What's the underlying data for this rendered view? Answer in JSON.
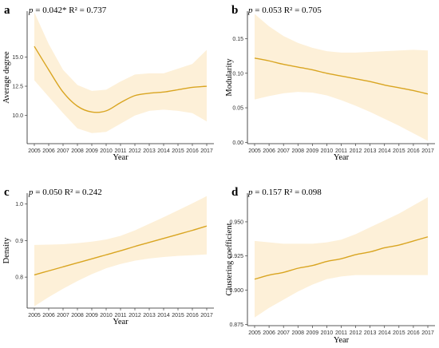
{
  "colors": {
    "band": "#fdf0d8",
    "line": "#d9a521",
    "axis": "#222222"
  },
  "chart_data": [
    {
      "type": "line",
      "panel_label": "a",
      "stat_p_symbol": "p",
      "stat_text": " = 0.042* R² = 0.737",
      "xlabel": "Year",
      "ylabel": "Average degree",
      "x": [
        2005,
        2006,
        2007,
        2008,
        2009,
        2010,
        2011,
        2012,
        2013,
        2014,
        2015,
        2016,
        2017
      ],
      "x_tick_labels": [
        "2005",
        "2006",
        "2007",
        "2008",
        "2009",
        "2010",
        "2011",
        "2012",
        "2013",
        "2014",
        "2015",
        "2016",
        "2017"
      ],
      "y_ticks": [
        10.0,
        12.5,
        15.0
      ],
      "y_tick_labels": [
        "10.0",
        "12.5",
        "15.0"
      ],
      "ylim": [
        7.6,
        18.9
      ],
      "fit": [
        15.9,
        13.9,
        12.0,
        10.8,
        10.3,
        10.4,
        11.1,
        11.7,
        11.9,
        12.0,
        12.2,
        12.4,
        12.5
      ],
      "ci_lower": [
        13.0,
        11.6,
        10.2,
        8.9,
        8.5,
        8.6,
        9.3,
        10.0,
        10.4,
        10.5,
        10.4,
        10.2,
        9.5
      ],
      "ci_upper": [
        18.8,
        16.1,
        13.9,
        12.6,
        12.1,
        12.2,
        12.9,
        13.5,
        13.6,
        13.6,
        14.0,
        14.4,
        15.6
      ],
      "grid": false,
      "legend": "none"
    },
    {
      "type": "line",
      "panel_label": "b",
      "stat_p_symbol": "p",
      "stat_text": " = 0.053 R² = 0.705",
      "xlabel": "Year",
      "ylabel": "Modularity",
      "x": [
        2005,
        2006,
        2007,
        2008,
        2009,
        2010,
        2011,
        2012,
        2013,
        2014,
        2015,
        2016,
        2017
      ],
      "x_tick_labels": [
        "2005",
        "2006",
        "2007",
        "2008",
        "2009",
        "2010",
        "2011",
        "2012",
        "2013",
        "2014",
        "2015",
        "2016",
        "2017"
      ],
      "y_ticks": [
        0.0,
        0.05,
        0.1,
        0.15
      ],
      "y_tick_labels": [
        "0.00",
        "0.05",
        "0.10",
        "0.15"
      ],
      "ylim": [
        -0.002,
        0.19
      ],
      "fit": [
        0.122,
        0.118,
        0.113,
        0.109,
        0.105,
        0.1,
        0.096,
        0.092,
        0.088,
        0.083,
        0.079,
        0.075,
        0.07
      ],
      "ci_lower": [
        0.062,
        0.067,
        0.071,
        0.073,
        0.072,
        0.068,
        0.061,
        0.053,
        0.044,
        0.034,
        0.024,
        0.013,
        0.002
      ],
      "ci_upper": [
        0.186,
        0.168,
        0.154,
        0.144,
        0.137,
        0.132,
        0.13,
        0.13,
        0.131,
        0.132,
        0.133,
        0.134,
        0.133
      ],
      "grid": false,
      "legend": "none"
    },
    {
      "type": "line",
      "panel_label": "c",
      "stat_p_symbol": "p",
      "stat_text": " = 0.050 R² = 0.242",
      "xlabel": "Year",
      "ylabel": "Density",
      "x": [
        2005,
        2006,
        2007,
        2008,
        2009,
        2010,
        2011,
        2012,
        2013,
        2014,
        2015,
        2016,
        2017
      ],
      "x_tick_labels": [
        "2005",
        "2006",
        "2007",
        "2008",
        "2009",
        "2010",
        "2011",
        "2012",
        "2013",
        "2014",
        "2015",
        "2016",
        "2017"
      ],
      "y_ticks": [
        0.8,
        0.9,
        1.0
      ],
      "y_tick_labels": [
        "0.8",
        "0.9",
        "1.0"
      ],
      "ylim": [
        0.715,
        1.03
      ],
      "fit": [
        0.806,
        0.817,
        0.828,
        0.839,
        0.85,
        0.861,
        0.872,
        0.884,
        0.895,
        0.906,
        0.917,
        0.928,
        0.94
      ],
      "ci_lower": [
        0.72,
        0.745,
        0.768,
        0.789,
        0.808,
        0.824,
        0.836,
        0.845,
        0.851,
        0.855,
        0.858,
        0.86,
        0.862
      ],
      "ci_upper": [
        0.888,
        0.889,
        0.89,
        0.893,
        0.897,
        0.903,
        0.913,
        0.928,
        0.946,
        0.964,
        0.983,
        1.002,
        1.022
      ],
      "grid": false,
      "legend": "none"
    },
    {
      "type": "line",
      "panel_label": "d",
      "stat_p_symbol": "p",
      "stat_text": " = 0.157 R² = 0.098",
      "xlabel": "Year",
      "ylabel": "Clustering coefficient",
      "x": [
        2005,
        2006,
        2007,
        2008,
        2009,
        2010,
        2011,
        2012,
        2013,
        2014,
        2015,
        2016,
        2017
      ],
      "x_tick_labels": [
        "2005",
        "2006",
        "2007",
        "2008",
        "2009",
        "2010",
        "2011",
        "2012",
        "2013",
        "2014",
        "2015",
        "2016",
        "2017"
      ],
      "y_ticks": [
        0.875,
        0.9,
        0.925,
        0.95
      ],
      "y_tick_labels": [
        "0.875",
        "0.900",
        "0.925",
        "0.950"
      ],
      "ylim": [
        0.874,
        0.971
      ],
      "fit": [
        0.908,
        0.911,
        0.913,
        0.916,
        0.918,
        0.921,
        0.923,
        0.926,
        0.928,
        0.931,
        0.933,
        0.936,
        0.939
      ],
      "ci_lower": [
        0.88,
        0.887,
        0.893,
        0.899,
        0.904,
        0.908,
        0.91,
        0.911,
        0.911,
        0.911,
        0.911,
        0.911,
        0.911
      ],
      "ci_upper": [
        0.936,
        0.935,
        0.934,
        0.934,
        0.934,
        0.935,
        0.937,
        0.941,
        0.946,
        0.951,
        0.956,
        0.962,
        0.968
      ],
      "grid": false,
      "legend": "none"
    }
  ]
}
